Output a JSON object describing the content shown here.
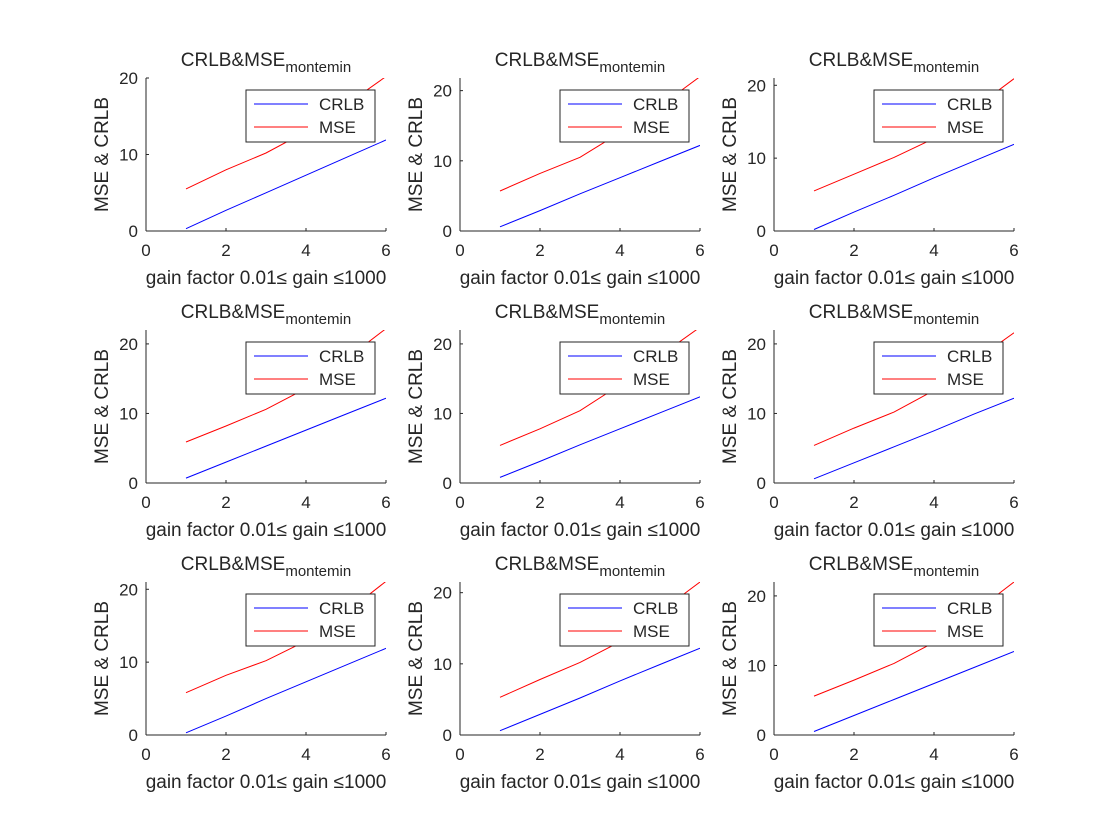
{
  "figure": {
    "colors": {
      "CRLB": "#0000ff",
      "MSE": "#ff0000",
      "axis": "#262626"
    },
    "xlim": [
      0,
      6
    ],
    "xticks": [
      0,
      2,
      4,
      6
    ],
    "yticks": [
      0,
      10,
      20
    ]
  },
  "chart_data": [
    {
      "type": "line",
      "title": "CRLB&MSE",
      "title_sub": "montemin",
      "xlabel": "gain factor 0.01≤ gain ≤1000",
      "ylabel": "MSE & CRLB",
      "xlim": [
        0,
        6
      ],
      "ylim": [
        0,
        20
      ],
      "legend": "top-right",
      "grid": false,
      "x": [
        1,
        2,
        3,
        4,
        5,
        6
      ],
      "series": [
        {
          "name": "CRLB",
          "values": [
            0.3,
            2.7,
            5.0,
            7.3,
            9.6,
            11.9
          ]
        },
        {
          "name": "MSE",
          "values": [
            5.5,
            8.0,
            10.2,
            13.0,
            16.5,
            20.2
          ]
        }
      ]
    },
    {
      "type": "line",
      "title": "CRLB&MSE",
      "title_sub": "montemin",
      "xlabel": "gain factor 0.01≤ gain ≤1000",
      "ylabel": "MSE & CRLB",
      "xlim": [
        0,
        6
      ],
      "ylim": [
        0,
        21.8
      ],
      "legend": "top-right",
      "grid": false,
      "x": [
        1,
        2,
        3,
        4,
        5,
        6
      ],
      "series": [
        {
          "name": "CRLB",
          "values": [
            0.6,
            2.9,
            5.3,
            7.6,
            9.9,
            12.2
          ]
        },
        {
          "name": "MSE",
          "values": [
            5.7,
            8.2,
            10.5,
            14.0,
            17.8,
            22.0
          ]
        }
      ]
    },
    {
      "type": "line",
      "title": "CRLB&MSE",
      "title_sub": "montemin",
      "xlabel": "gain factor 0.01≤ gain ≤1000",
      "ylabel": "MSE & CRLB",
      "xlim": [
        0,
        6
      ],
      "ylim": [
        0,
        21
      ],
      "legend": "top-right",
      "grid": false,
      "x": [
        1,
        2,
        3,
        4,
        5,
        6
      ],
      "series": [
        {
          "name": "CRLB",
          "values": [
            0.2,
            2.6,
            4.9,
            7.3,
            9.6,
            11.9
          ]
        },
        {
          "name": "MSE",
          "values": [
            5.5,
            7.8,
            10.1,
            12.7,
            16.8,
            20.9
          ]
        }
      ]
    },
    {
      "type": "line",
      "title": "CRLB&MSE",
      "title_sub": "montemin",
      "xlabel": "gain factor 0.01≤ gain ≤1000",
      "ylabel": "MSE & CRLB",
      "xlim": [
        0,
        6
      ],
      "ylim": [
        0,
        22
      ],
      "legend": "top-right",
      "grid": false,
      "x": [
        1,
        2,
        3,
        4,
        5,
        6
      ],
      "series": [
        {
          "name": "CRLB",
          "values": [
            0.7,
            3.0,
            5.3,
            7.6,
            9.9,
            12.2
          ]
        },
        {
          "name": "MSE",
          "values": [
            5.9,
            8.2,
            10.6,
            13.6,
            17.8,
            22.2
          ]
        }
      ]
    },
    {
      "type": "line",
      "title": "CRLB&MSE",
      "title_sub": "montemin",
      "xlabel": "gain factor 0.01≤ gain ≤1000",
      "ylabel": "MSE & CRLB",
      "xlim": [
        0,
        6
      ],
      "ylim": [
        0,
        22
      ],
      "legend": "top-right",
      "grid": false,
      "x": [
        1,
        2,
        3,
        4,
        5,
        6
      ],
      "series": [
        {
          "name": "CRLB",
          "values": [
            0.8,
            3.1,
            5.5,
            7.8,
            10.1,
            12.4
          ]
        },
        {
          "name": "MSE",
          "values": [
            5.4,
            7.8,
            10.4,
            14.1,
            18.3,
            22.4
          ]
        }
      ]
    },
    {
      "type": "line",
      "title": "CRLB&MSE",
      "title_sub": "montemin",
      "xlabel": "gain factor 0.01≤ gain ≤1000",
      "ylabel": "MSE & CRLB",
      "xlim": [
        0,
        6
      ],
      "ylim": [
        0,
        22
      ],
      "legend": "top-right",
      "grid": false,
      "x": [
        1,
        2,
        3,
        4,
        5,
        6
      ],
      "series": [
        {
          "name": "CRLB",
          "values": [
            0.6,
            2.9,
            5.2,
            7.5,
            9.9,
            12.2
          ]
        },
        {
          "name": "MSE",
          "values": [
            5.4,
            7.9,
            10.2,
            13.3,
            17.5,
            21.6
          ]
        }
      ]
    },
    {
      "type": "line",
      "title": "CRLB&MSE",
      "title_sub": "montemin",
      "xlabel": "gain factor 0.01≤ gain ≤1000",
      "ylabel": "MSE & CRLB",
      "xlim": [
        0,
        6
      ],
      "ylim": [
        0,
        21
      ],
      "legend": "top-right",
      "grid": false,
      "x": [
        1,
        2,
        3,
        4,
        5,
        6
      ],
      "series": [
        {
          "name": "CRLB",
          "values": [
            0.3,
            2.6,
            5.0,
            7.3,
            9.6,
            11.9
          ]
        },
        {
          "name": "MSE",
          "values": [
            5.8,
            8.2,
            10.2,
            12.9,
            16.8,
            21.1
          ]
        }
      ]
    },
    {
      "type": "line",
      "title": "CRLB&MSE",
      "title_sub": "montemin",
      "xlabel": "gain factor 0.01≤ gain ≤1000",
      "ylabel": "MSE & CRLB",
      "xlim": [
        0,
        6
      ],
      "ylim": [
        0,
        21.5
      ],
      "legend": "top-right",
      "grid": false,
      "x": [
        1,
        2,
        3,
        4,
        5,
        6
      ],
      "series": [
        {
          "name": "CRLB",
          "values": [
            0.6,
            2.9,
            5.2,
            7.6,
            9.9,
            12.2
          ]
        },
        {
          "name": "MSE",
          "values": [
            5.3,
            7.8,
            10.2,
            13.1,
            17.3,
            21.5
          ]
        }
      ]
    },
    {
      "type": "line",
      "title": "CRLB&MSE",
      "title_sub": "montemin",
      "xlabel": "gain factor 0.01≤ gain ≤1000",
      "ylabel": "MSE & CRLB",
      "xlim": [
        0,
        6
      ],
      "ylim": [
        0,
        22
      ],
      "legend": "top-right",
      "grid": false,
      "x": [
        1,
        2,
        3,
        4,
        5,
        6
      ],
      "series": [
        {
          "name": "CRLB",
          "values": [
            0.5,
            2.8,
            5.1,
            7.4,
            9.7,
            12.0
          ]
        },
        {
          "name": "MSE",
          "values": [
            5.6,
            7.9,
            10.3,
            13.3,
            17.6,
            22.0
          ]
        }
      ]
    }
  ]
}
